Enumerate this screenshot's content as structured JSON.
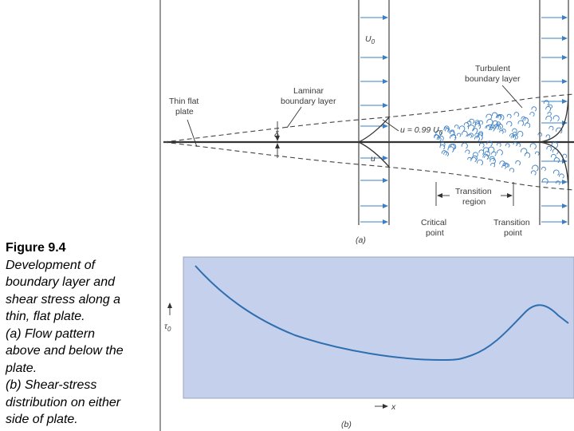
{
  "caption": {
    "title": "Figure 9.4",
    "lines": [
      "Development of",
      "boundary layer and",
      "shear stress along a",
      "thin, flat plate.",
      "(a) Flow pattern",
      "above and below the",
      "plate.",
      "(b) Shear-stress",
      "distribution on either",
      "side of plate."
    ]
  },
  "panel_a": {
    "label": "(a)",
    "u0": "U",
    "u0_sub": "0",
    "thin_plate": [
      "Thin flat",
      "plate"
    ],
    "laminar": [
      "Laminar",
      "boundary layer"
    ],
    "turbulent": [
      "Turbulent",
      "boundary layer"
    ],
    "delta": "δ",
    "u_eq": "u = 0.99 U",
    "u_eq_sub": "0",
    "u": "u",
    "transition_region": [
      "Transition",
      "region"
    ],
    "critical_point": [
      "Critical",
      "point"
    ],
    "transition_point": [
      "Transition",
      "point"
    ]
  },
  "panel_b": {
    "label": "(b)",
    "ylabel": "τ",
    "ylabel_sub": "0",
    "xlabel": "x",
    "background": "#c5d1ec",
    "curve_color": "#2f6fb0"
  },
  "colors": {
    "arrow": "#3b7fc4",
    "line": "#333333"
  }
}
